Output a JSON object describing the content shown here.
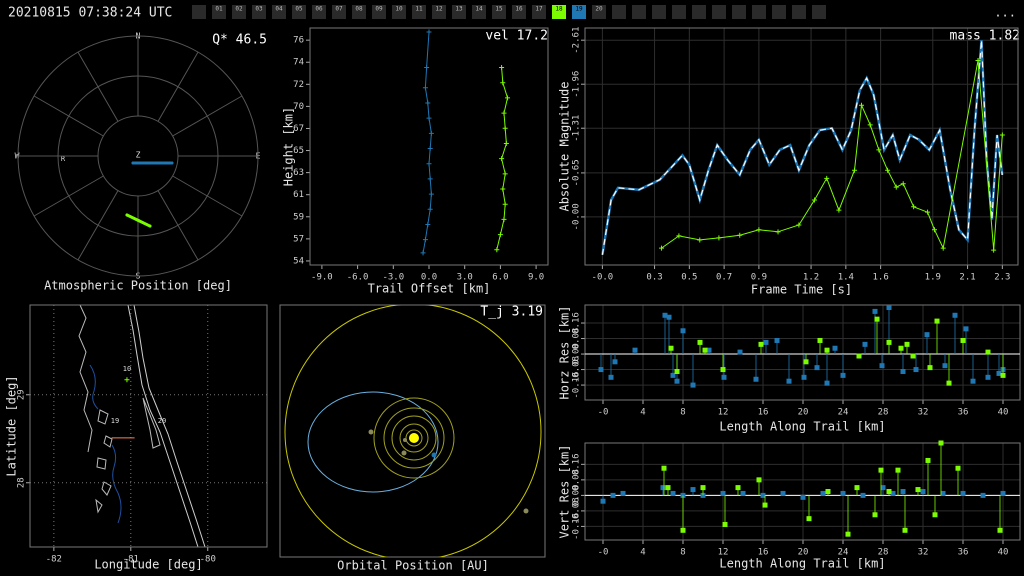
{
  "header": {
    "timestamp": "20210815 07:38:24 UTC",
    "frames": [
      {
        "label": "01"
      },
      {
        "label": "02"
      },
      {
        "label": "03"
      },
      {
        "label": "04"
      },
      {
        "label": "05"
      },
      {
        "label": "06"
      },
      {
        "label": "07"
      },
      {
        "label": "08"
      },
      {
        "label": "09"
      },
      {
        "label": "10"
      },
      {
        "label": "11"
      },
      {
        "label": "12"
      },
      {
        "label": "13"
      },
      {
        "label": "14"
      },
      {
        "label": "15"
      },
      {
        "label": "16"
      },
      {
        "label": "17"
      },
      {
        "label": "18",
        "color": "#7cfc00"
      },
      {
        "label": "19",
        "color": "#1f77b4"
      },
      {
        "label": "20"
      }
    ],
    "menu": "..."
  },
  "chart_data": [
    {
      "type": "polar",
      "title": "Atmospheric Position [deg]",
      "annotation": "Q* 46.5",
      "directions": [
        "N",
        "E",
        "S",
        "W"
      ],
      "zenith_label": "Z",
      "radiant_label": "R",
      "rlim": [
        0,
        90
      ],
      "series": [
        {
          "color": "#1f77b4",
          "azimuth": [
            215.5,
            144.5,
            115,
            105.6,
            101.6
          ],
          "zenith": [
            6.5,
            6.5,
            12.4,
            19.5,
            26
          ]
        },
        {
          "color": "#7cfc00",
          "azimuth": [
            190.6,
            179.6,
            170.3
          ],
          "zenith": [
            45,
            48.4,
            53.3
          ]
        }
      ]
    },
    {
      "type": "line",
      "xlabel": "Trail Offset [km]",
      "ylabel": "Height [km]",
      "annotation": "vel 17.2",
      "xlim": [
        -10,
        10
      ],
      "ylim": [
        54.0,
        77.4
      ],
      "xticks": [
        {
          "value": -9,
          "label": "-9.0"
        },
        {
          "value": -6,
          "label": "-6.0"
        },
        {
          "value": -3,
          "label": "-3.0"
        },
        {
          "value": 0,
          "label": "0.0"
        },
        {
          "value": 3,
          "label": "3.0"
        },
        {
          "value": 6,
          "label": "6.0"
        },
        {
          "value": 9,
          "label": "9.0"
        }
      ],
      "yticks": [
        {
          "value": 54.4,
          "label": "54"
        },
        {
          "value": 56.58,
          "label": "57"
        },
        {
          "value": 58.76,
          "label": "59"
        },
        {
          "value": 60.94,
          "label": "61"
        },
        {
          "value": 63.12,
          "label": "63"
        },
        {
          "value": 65.3,
          "label": "65"
        },
        {
          "value": 67.48,
          "label": "67"
        },
        {
          "value": 69.66,
          "label": "70"
        },
        {
          "value": 71.84,
          "label": "72"
        },
        {
          "value": 74.02,
          "label": "74"
        },
        {
          "value": 76.2,
          "label": "76"
        }
      ],
      "series": [
        {
          "color": "#1f77b4",
          "marker": "+",
          "x": [
            -0.5,
            -0.3,
            -0.1,
            0.1,
            0.2,
            0.1,
            0.0,
            0.1,
            0.2,
            0.0,
            -0.1,
            -0.3,
            -0.2,
            0.0
          ],
          "values": [
            55.2,
            56.5,
            58.0,
            59.5,
            61.0,
            62.5,
            64.0,
            65.5,
            67.0,
            68.5,
            70.0,
            71.5,
            73.5,
            77.0
          ]
        },
        {
          "color": "#7cfc00",
          "marker": "+",
          "x": [
            5.7,
            6.0,
            6.3,
            6.4,
            6.2,
            6.4,
            6.1,
            6.5,
            6.4,
            6.3,
            6.6,
            6.2,
            6.1
          ],
          "values": [
            55.5,
            57.0,
            58.5,
            60.0,
            61.5,
            63.0,
            64.5,
            66.0,
            67.5,
            69.0,
            70.5,
            72.0,
            73.5
          ]
        }
      ]
    },
    {
      "type": "line",
      "xlabel": "Frame Time [s]",
      "ylabel": "Absolute Magnitude",
      "annotation": "mass 1.82",
      "grid": true,
      "xlim": [
        -0.1,
        2.39
      ],
      "ylim": [
        0.71,
        -2.79
      ],
      "xticks": [
        {
          "value": 0,
          "label": "-0.0"
        },
        0.3,
        0.5,
        0.7,
        0.9,
        1.2,
        1.4,
        1.6,
        1.9,
        2.1,
        2.3
      ],
      "yticks": [
        -2.61,
        -1.96,
        -1.31,
        -0.65,
        {
          "value": 0,
          "label": "-0.00"
        }
      ],
      "series": [
        {
          "color": "#1f77b4",
          "overlay_color": "#ffffff",
          "x": [
            0.0,
            0.05,
            0.09,
            0.21,
            0.33,
            0.41,
            0.46,
            0.5,
            0.56,
            0.61,
            0.66,
            0.72,
            0.79,
            0.85,
            0.9,
            0.96,
            1.02,
            1.08,
            1.13,
            1.19,
            1.25,
            1.32,
            1.38,
            1.43,
            1.48,
            1.52,
            1.56,
            1.62,
            1.67,
            1.71,
            1.77,
            1.82,
            1.88,
            1.94,
            2.0,
            2.05,
            2.1,
            2.14,
            2.18,
            2.21,
            2.24,
            2.27,
            2.3
          ],
          "values": [
            0.56,
            -0.25,
            -0.43,
            -0.4,
            -0.55,
            -0.77,
            -0.91,
            -0.77,
            -0.25,
            -0.69,
            -1.06,
            -0.84,
            -0.62,
            -0.99,
            -1.14,
            -0.77,
            -0.99,
            -1.06,
            -0.69,
            -1.06,
            -1.28,
            -1.31,
            -0.99,
            -1.28,
            -1.87,
            -2.05,
            -1.8,
            -0.99,
            -1.21,
            -0.84,
            -1.21,
            -1.14,
            -0.99,
            -1.28,
            -0.4,
            0.19,
            0.34,
            -1.28,
            -2.61,
            -0.84,
            0.04,
            -1.21,
            -0.62
          ]
        },
        {
          "color": "#7cfc00",
          "marker": "+",
          "x": [
            0.34,
            0.44,
            0.56,
            0.67,
            0.79,
            0.9,
            1.01,
            1.13,
            1.22,
            1.29,
            1.36,
            1.45,
            1.49,
            1.54,
            1.59,
            1.64,
            1.69,
            1.73,
            1.79,
            1.87,
            1.91,
            1.96,
            2.16,
            2.25,
            2.3
          ],
          "values": [
            0.46,
            0.28,
            0.34,
            0.31,
            0.27,
            0.19,
            0.22,
            0.12,
            -0.25,
            -0.57,
            -0.1,
            -0.69,
            -1.65,
            -1.36,
            -0.99,
            -0.69,
            -0.44,
            -0.49,
            -0.15,
            -0.07,
            0.19,
            0.46,
            -2.31,
            0.49,
            -1.21
          ]
        }
      ]
    },
    {
      "type": "map",
      "xlabel": "Longitude [deg]",
      "ylabel": "Latitude [deg]",
      "grid": true,
      "grid_style": "dotted",
      "xlim": [
        -82.31,
        -79.23
      ],
      "ylim": [
        27.27,
        30.02
      ],
      "xticks": [
        -82,
        -81,
        -80
      ],
      "yticks": [
        28,
        29
      ],
      "labels": [
        "10",
        "19",
        "20"
      ],
      "series": [
        {
          "color": "#7cfc00",
          "marker": "+",
          "x": [
            -81.05
          ],
          "values": [
            29.17
          ]
        },
        {
          "color": "#ff7f50",
          "x": [
            -81.25,
            -80.95
          ],
          "values": [
            28.51,
            28.51
          ]
        }
      ]
    },
    {
      "type": "orbit",
      "xlabel": "Orbital Position [AU]",
      "annotation": "T_j 3.19"
    },
    {
      "type": "stem",
      "xlabel": "Length Along Trail [km]",
      "ylabel": "Horz Res [km]",
      "grid": true,
      "xlim": [
        -1.8,
        41.7
      ],
      "ylim": [
        -0.237,
        0.253
      ],
      "xticks": [
        {
          "value": 0,
          "label": "-0"
        },
        4,
        8,
        12,
        16,
        20,
        24,
        28,
        32,
        36,
        40
      ],
      "yticks": [
        -0.16,
        -0.08,
        {
          "value": 0,
          "label": "0.00"
        },
        0.08,
        0.16
      ],
      "series": [
        {
          "color": "#1f77b4",
          "x": [
            -0.2,
            0.8,
            1.2,
            3.2,
            6.2,
            6.6,
            7.0,
            7.4,
            8.0,
            9.0,
            10.6,
            12.1,
            13.7,
            15.3,
            16.3,
            17.4,
            18.6,
            20.1,
            21.4,
            22.4,
            23.2,
            24.0,
            26.2,
            27.2,
            27.9,
            28.6,
            30.0,
            31.3,
            32.4,
            34.2,
            35.2,
            36.3,
            37.0,
            38.5,
            39.6,
            40.0
          ],
          "values": [
            -0.08,
            -0.12,
            -0.04,
            0.02,
            0.2,
            0.19,
            -0.11,
            -0.14,
            0.12,
            -0.16,
            0.02,
            -0.12,
            0.01,
            -0.13,
            0.06,
            0.07,
            -0.14,
            -0.12,
            -0.07,
            -0.15,
            0.03,
            -0.11,
            0.05,
            0.22,
            -0.06,
            0.24,
            -0.09,
            -0.08,
            0.1,
            -0.06,
            0.2,
            0.13,
            -0.14,
            -0.12,
            -0.1,
            -0.08
          ]
        },
        {
          "color": "#7cfc00",
          "x": [
            6.8,
            7.4,
            9.7,
            10.2,
            12.0,
            15.8,
            20.3,
            21.7,
            22.4,
            25.6,
            27.4,
            28.6,
            29.8,
            30.4,
            31.0,
            32.7,
            33.4,
            34.6,
            36.0,
            38.5,
            40.0
          ],
          "values": [
            0.03,
            -0.09,
            0.06,
            0.02,
            -0.08,
            0.05,
            -0.04,
            0.07,
            0.02,
            -0.01,
            0.18,
            0.06,
            0.03,
            0.05,
            -0.01,
            -0.07,
            0.17,
            -0.15,
            0.07,
            0.01,
            -0.11
          ]
        }
      ]
    },
    {
      "type": "stem",
      "xlabel": "Length Along Trail [km]",
      "ylabel": "Vert Res [km]",
      "grid": true,
      "xlim": [
        -1.8,
        41.7
      ],
      "ylim": [
        -0.23,
        0.27
      ],
      "xticks": [
        {
          "value": 0,
          "label": "-0"
        },
        4,
        8,
        12,
        16,
        20,
        24,
        28,
        32,
        36,
        40
      ],
      "yticks": [
        -0.16,
        -0.08,
        {
          "value": 0,
          "label": "0.00"
        },
        0.08,
        0.16
      ],
      "series": [
        {
          "color": "#1f77b4",
          "x": [
            0,
            1,
            2,
            6,
            7,
            8,
            9,
            10,
            12,
            14,
            16,
            18,
            20,
            22,
            24,
            26,
            28,
            29,
            30,
            32,
            34,
            36,
            38,
            40
          ],
          "values": [
            -0.03,
            0,
            0.01,
            0.04,
            0.01,
            0,
            0.03,
            0,
            0.01,
            0.01,
            0,
            0.01,
            -0.01,
            0.01,
            0.01,
            0,
            0.04,
            0.01,
            0.02,
            0.02,
            0.01,
            0.01,
            0,
            0.01
          ]
        },
        {
          "color": "#7cfc00",
          "x": [
            6.1,
            6.5,
            8.0,
            10.0,
            12.2,
            13.5,
            15.6,
            16.2,
            20.6,
            22.5,
            24.5,
            25.4,
            27.2,
            27.8,
            28.6,
            29.5,
            30.2,
            31.5,
            32.5,
            33.2,
            33.8,
            35.5,
            39.7
          ],
          "values": [
            0.14,
            0.04,
            -0.18,
            0.04,
            -0.15,
            0.04,
            0.08,
            -0.05,
            -0.12,
            0.02,
            -0.2,
            0.04,
            -0.1,
            0.13,
            0.02,
            0.13,
            -0.18,
            0.03,
            0.18,
            -0.1,
            0.27,
            0.14,
            -0.18
          ]
        }
      ]
    }
  ]
}
